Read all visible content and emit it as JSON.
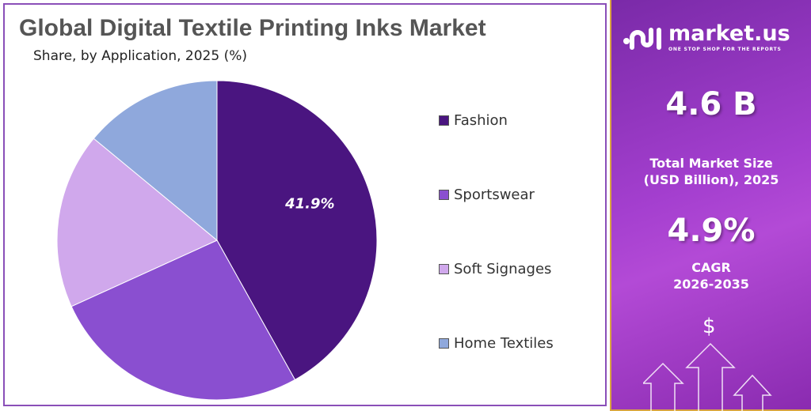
{
  "title": "Global Digital Textile Printing Inks Market",
  "subtitle": "Share, by Application, 2025 (%)",
  "chart_data": {
    "type": "pie",
    "title": "Global Digital Textile Printing Inks Market",
    "subtitle": "Share, by Application, 2025 (%)",
    "categories": [
      "Fashion",
      "Sportswear",
      "Soft Signages",
      "Home Textiles"
    ],
    "values": [
      41.9,
      26.3,
      17.8,
      14.0
    ],
    "colors": [
      "#4a1580",
      "#8a4fd0",
      "#d0a8ec",
      "#8fa8dc"
    ],
    "data_labels": [
      "41.9%",
      "",
      "",
      ""
    ],
    "start_angle": "top, clockwise",
    "legend_position": "right"
  },
  "sidebar": {
    "brand": "market.us",
    "tagline": "ONE STOP SHOP FOR THE REPORTS",
    "market_size": "4.6 B",
    "market_size_label_1": "Total Market Size",
    "market_size_label_2": "(USD Billion), 2025",
    "cagr": "4.9%",
    "cagr_label_1": "CAGR",
    "cagr_label_2": "2026-2035",
    "dollar": "$"
  }
}
